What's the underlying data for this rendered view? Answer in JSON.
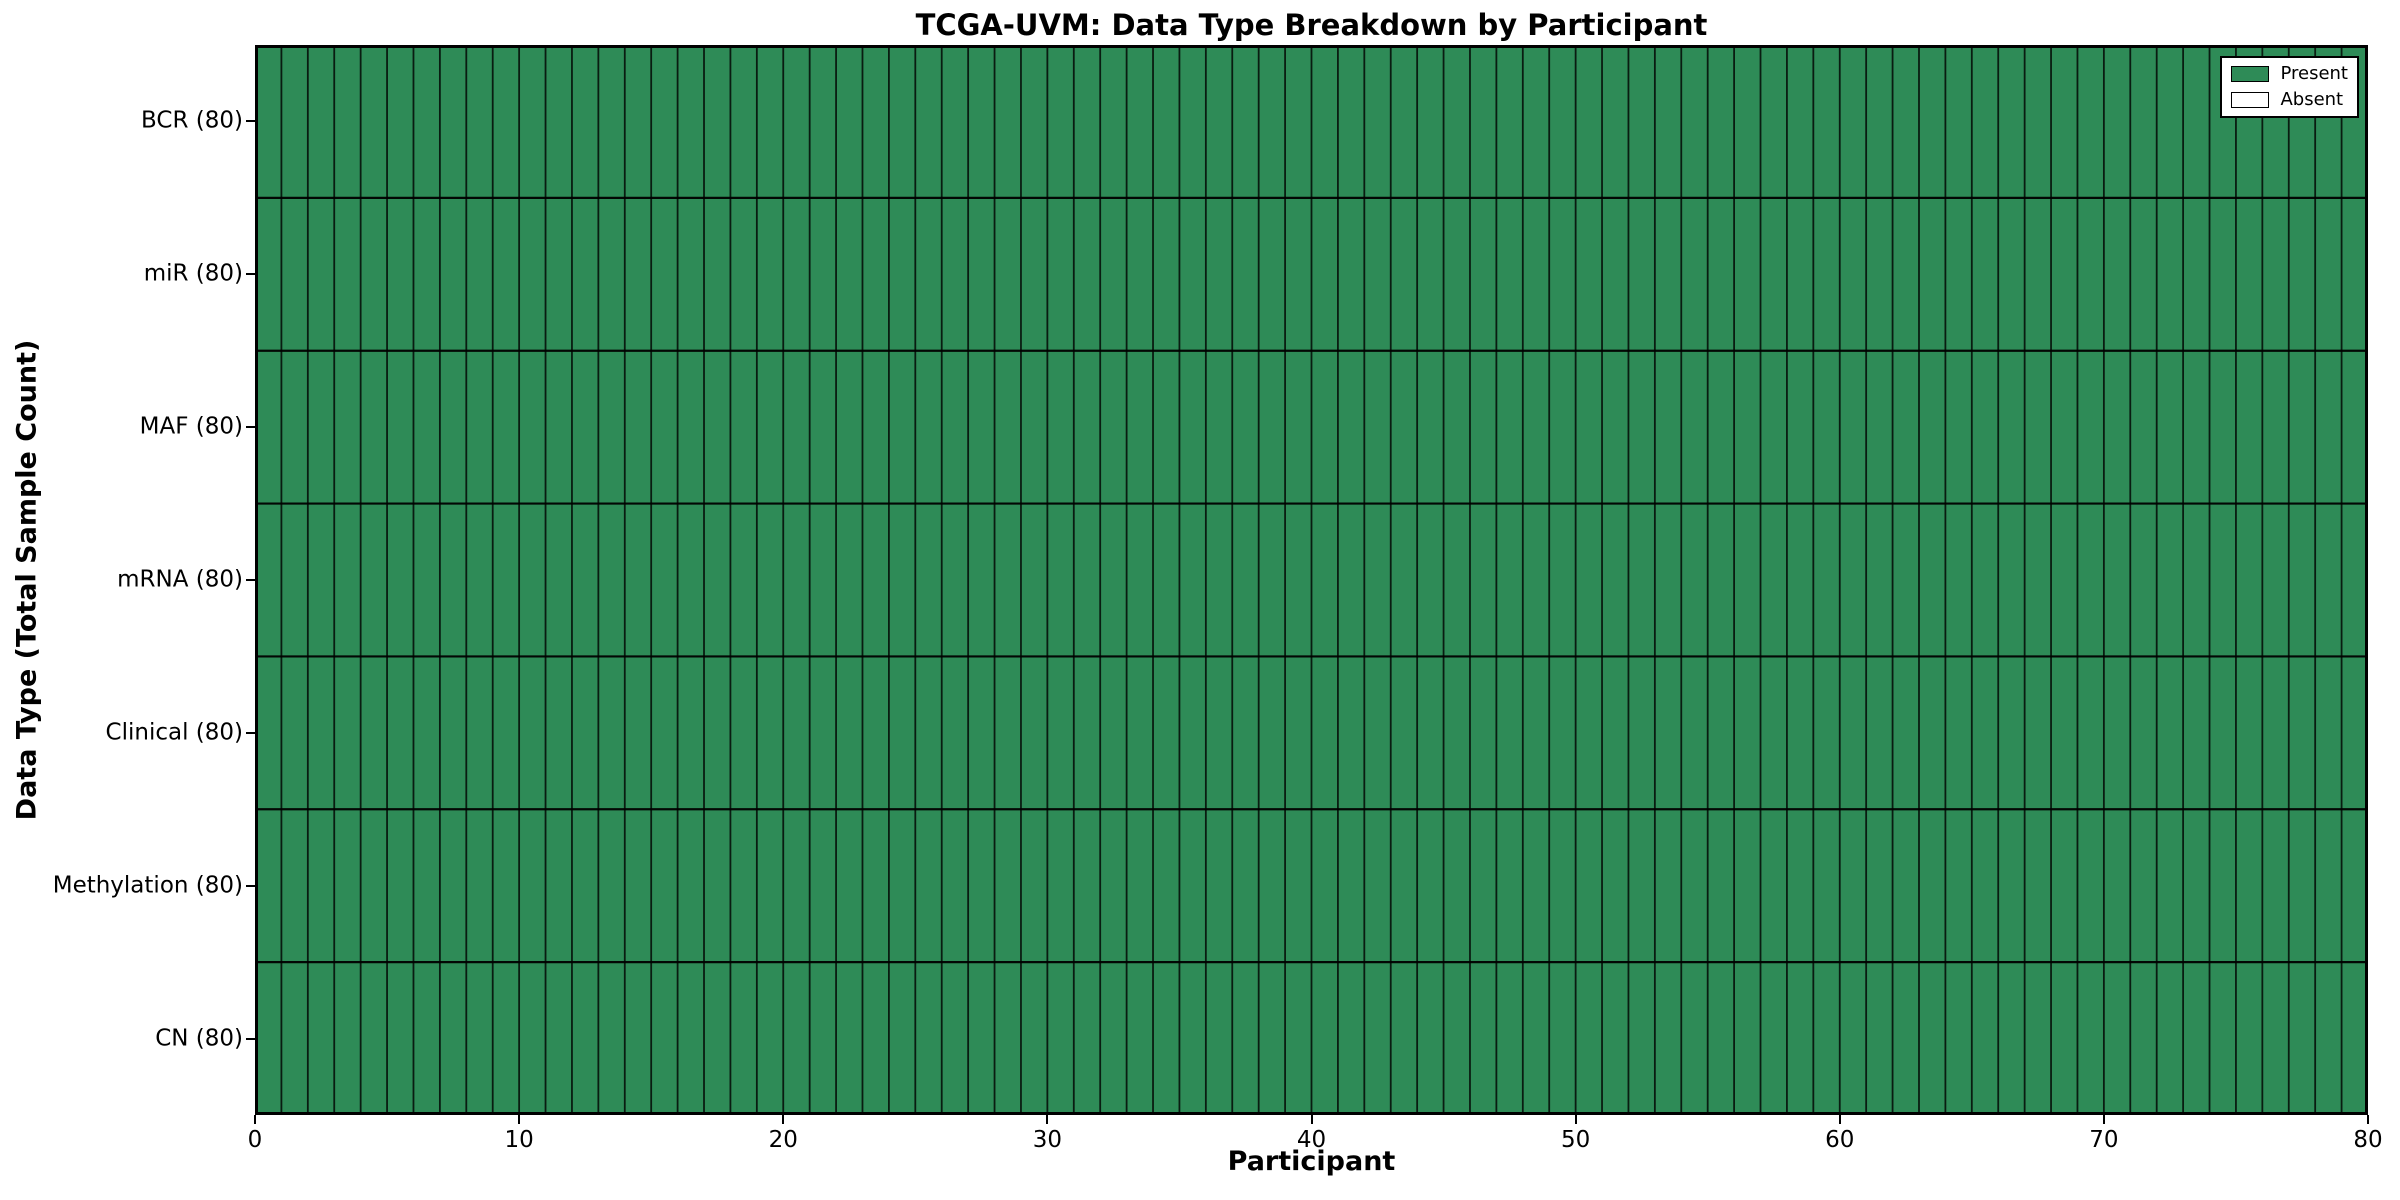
{
  "figure": {
    "background": "#ffffff"
  },
  "chart_data": {
    "type": "heatmap",
    "title": "TCGA-UVM: Data Type Breakdown by Participant",
    "xlabel": "Participant",
    "ylabel": "Data Type (Total Sample Count)",
    "xlim": [
      0,
      80
    ],
    "x_ticks": [
      0,
      10,
      20,
      30,
      40,
      50,
      60,
      70,
      80
    ],
    "n_participants": 80,
    "rows": [
      {
        "label": "BCR (80)",
        "present_count": 80
      },
      {
        "label": "miR (80)",
        "present_count": 80
      },
      {
        "label": "MAF (80)",
        "present_count": 80
      },
      {
        "label": "mRNA (80)",
        "present_count": 80
      },
      {
        "label": "Clinical (80)",
        "present_count": 80
      },
      {
        "label": "Methylation (80)",
        "present_count": 80
      },
      {
        "label": "CN (80)",
        "present_count": 80
      }
    ],
    "legend": {
      "position": "upper right",
      "entries": [
        {
          "label": "Present",
          "color": "#2E8B57"
        },
        {
          "label": "Absent",
          "color": "#FFFFFF"
        }
      ]
    },
    "colors": {
      "present": "#2E8B57",
      "absent": "#FFFFFF",
      "grid_line": "#000000",
      "border": "#000000",
      "text": "#000000"
    },
    "grid": true
  }
}
